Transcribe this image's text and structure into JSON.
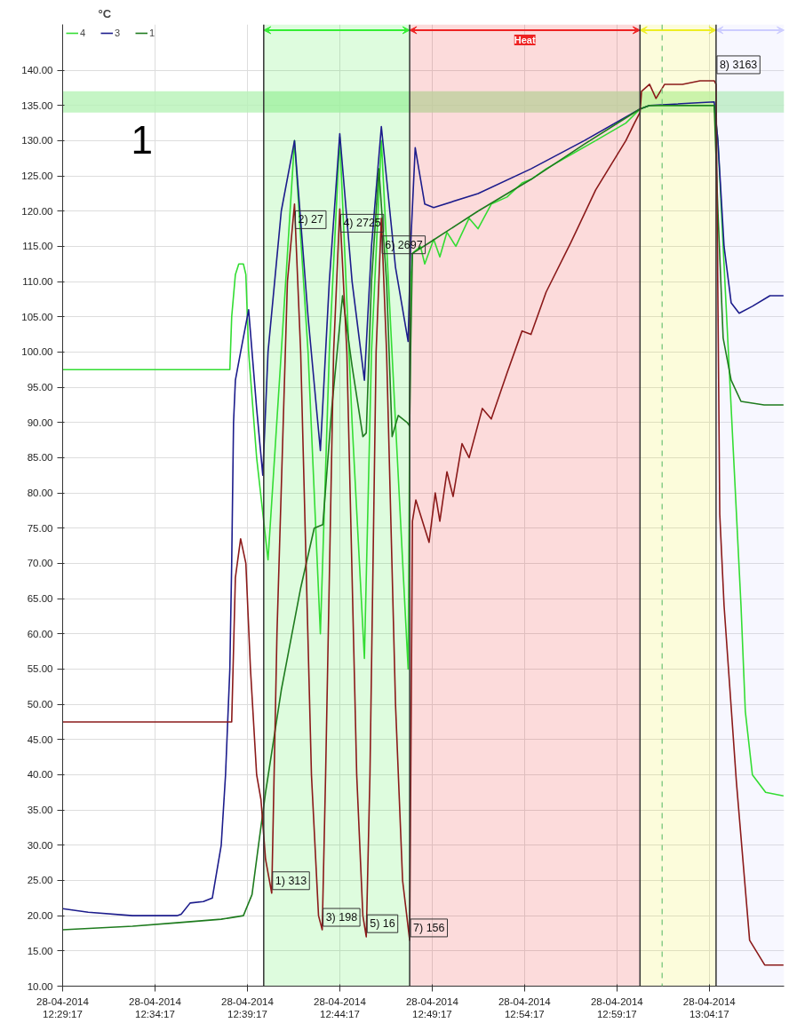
{
  "chart_data": {
    "type": "line",
    "ylabel": "°C",
    "xlim": [
      "2014-04-28T12:29:17",
      "2014-04-28T13:08:20"
    ],
    "ylim": [
      10,
      146.5
    ],
    "xticks": [
      {
        "value": "2014-04-28T12:29:17",
        "label": "28-04-2014\n12:29:17"
      },
      {
        "value": "2014-04-28T12:34:17",
        "label": "28-04-2014\n12:34:17"
      },
      {
        "value": "2014-04-28T12:39:17",
        "label": "28-04-2014\n12:39:17"
      },
      {
        "value": "2014-04-28T12:44:17",
        "label": "28-04-2014\n12:44:17"
      },
      {
        "value": "2014-04-28T12:49:17",
        "label": "28-04-2014\n12:49:17"
      },
      {
        "value": "2014-04-28T12:54:17",
        "label": "28-04-2014\n12:54:17"
      },
      {
        "value": "2014-04-28T12:59:17",
        "label": "28-04-2014\n12:59:17"
      },
      {
        "value": "2014-04-28T13:04:17",
        "label": "28-04-2014\n13:04:17"
      }
    ],
    "yticks": [
      {
        "value": 10,
        "label": "10.00"
      },
      {
        "value": 15,
        "label": "15.00"
      },
      {
        "value": 20,
        "label": "20.00"
      },
      {
        "value": 25,
        "label": "25.00"
      },
      {
        "value": 30,
        "label": "30.00"
      },
      {
        "value": 35,
        "label": "35.00"
      },
      {
        "value": 40,
        "label": "40.00"
      },
      {
        "value": 45,
        "label": "45.00"
      },
      {
        "value": 50,
        "label": "50.00"
      },
      {
        "value": 55,
        "label": "55.00"
      },
      {
        "value": 60,
        "label": "60.00"
      },
      {
        "value": 65,
        "label": "65.00"
      },
      {
        "value": 70,
        "label": "70.00"
      },
      {
        "value": 75,
        "label": "75.00"
      },
      {
        "value": 80,
        "label": "80.00"
      },
      {
        "value": 85,
        "label": "85.00"
      },
      {
        "value": 90,
        "label": "90.00"
      },
      {
        "value": 95,
        "label": "95.00"
      },
      {
        "value": 100,
        "label": "100.00"
      },
      {
        "value": 105,
        "label": "105.00"
      },
      {
        "value": 110,
        "label": "110.00"
      },
      {
        "value": 115,
        "label": "115.00"
      },
      {
        "value": 120,
        "label": "120.00"
      },
      {
        "value": 125,
        "label": "125.00"
      },
      {
        "value": 130,
        "label": "130.00"
      },
      {
        "value": 135,
        "label": "135.00"
      },
      {
        "value": 140,
        "label": "140.00"
      }
    ],
    "grid": true,
    "legend": "top left",
    "marker": "none",
    "line_style": "solid",
    "series": [
      {
        "name": "4",
        "color": "#33dd33",
        "x": [
          "2014-04-28T12:29:17",
          "2014-04-28T12:38:20",
          "2014-04-28T12:38:26",
          "2014-04-28T12:38:38",
          "2014-04-28T12:38:49",
          "2014-04-28T12:39:04",
          "2014-04-28T12:39:12",
          "2014-04-28T12:39:21",
          "2014-04-28T12:39:47",
          "2014-04-28T12:40:24",
          "2014-04-28T12:41:07",
          "2014-04-28T12:41:50",
          "2014-04-28T12:42:34",
          "2014-04-28T12:43:14",
          "2014-04-28T12:43:43",
          "2014-04-28T12:44:17",
          "2014-04-28T12:44:57",
          "2014-04-28T12:45:37",
          "2014-04-28T12:46:00",
          "2014-04-28T12:46:32",
          "2014-04-28T12:47:18",
          "2014-04-28T12:47:59",
          "2014-04-28T12:48:07",
          "2014-04-28T12:48:13",
          "2014-04-28T12:48:39",
          "2014-04-28T12:48:53",
          "2014-04-28T12:49:22",
          "2014-04-28T12:49:42",
          "2014-04-28T12:50:05",
          "2014-04-28T12:50:34",
          "2014-04-28T12:51:17",
          "2014-04-28T12:51:46",
          "2014-04-28T12:52:29",
          "2014-04-28T12:53:20",
          "2014-04-28T12:54:09",
          "2014-04-28T12:54:38",
          "2014-04-28T12:55:27",
          "2014-04-28T12:56:47",
          "2014-04-28T12:58:08",
          "2014-04-28T12:59:46",
          "2014-04-28T13:00:32",
          "2014-04-28T13:01:03",
          "2014-04-28T13:04:33",
          "2014-04-28T13:04:45",
          "2014-04-28T13:05:02",
          "2014-04-28T13:06:00",
          "2014-04-28T13:06:14",
          "2014-04-28T13:06:37",
          "2014-04-28T13:07:20",
          "2014-04-28T13:08:18"
        ],
        "values": [
          97.5,
          97.5,
          105,
          111,
          112.5,
          112.5,
          111,
          100,
          85,
          70.5,
          100,
          130,
          100,
          60,
          100,
          130.5,
          90,
          56.5,
          100,
          130,
          90,
          55,
          110,
          114,
          115,
          112.5,
          116,
          113.5,
          117,
          115,
          119,
          117.5,
          121,
          122,
          124,
          124.5,
          126,
          128,
          130,
          132.5,
          134.5,
          135,
          135,
          130,
          115,
          64,
          49,
          40,
          37.5,
          37
        ]
      },
      {
        "name": "3",
        "color": "#1c1c8c",
        "x": [
          "2014-04-28T12:29:17",
          "2014-04-28T12:30:40",
          "2014-04-28T12:33:04",
          "2014-04-28T12:35:28",
          "2014-04-28T12:35:42",
          "2014-04-28T12:36:11",
          "2014-04-28T12:36:54",
          "2014-04-28T12:37:23",
          "2014-04-28T12:37:52",
          "2014-04-28T12:38:06",
          "2014-04-28T12:38:20",
          "2014-04-28T12:38:26",
          "2014-04-28T12:38:32",
          "2014-04-28T12:38:38",
          "2014-04-28T12:38:55",
          "2014-04-28T12:39:21",
          "2014-04-28T12:39:47",
          "2014-04-28T12:40:07",
          "2014-04-28T12:40:24",
          "2014-04-28T12:41:07",
          "2014-04-28T12:41:50",
          "2014-04-28T12:42:34",
          "2014-04-28T12:43:14",
          "2014-04-28T12:43:43",
          "2014-04-28T12:44:17",
          "2014-04-28T12:44:57",
          "2014-04-28T12:45:37",
          "2014-04-28T12:46:00",
          "2014-04-28T12:46:32",
          "2014-04-28T12:47:18",
          "2014-04-28T12:47:59",
          "2014-04-28T12:48:07",
          "2014-04-28T12:48:22",
          "2014-04-28T12:48:53",
          "2014-04-28T12:49:22",
          "2014-04-28T12:51:46",
          "2014-04-28T12:54:38",
          "2014-04-28T12:57:31",
          "2014-04-28T13:00:32",
          "2014-04-28T13:01:03",
          "2014-04-28T13:04:33",
          "2014-04-28T13:04:45",
          "2014-04-28T13:05:05",
          "2014-04-28T13:05:28",
          "2014-04-28T13:05:54",
          "2014-04-28T13:06:37",
          "2014-04-28T13:07:34",
          "2014-04-28T13:08:18"
        ],
        "values": [
          21,
          20.5,
          20,
          20,
          20.2,
          21.8,
          22,
          22.5,
          30,
          40,
          55,
          70,
          90,
          96,
          100,
          106,
          92,
          82.5,
          100,
          120,
          130,
          105,
          86,
          110,
          131,
          110,
          96,
          115,
          132,
          112,
          101.5,
          115,
          129,
          121,
          120.5,
          122.5,
          126,
          130,
          134.5,
          135,
          135.5,
          130,
          115,
          107,
          105.5,
          106.5,
          108,
          108
        ]
      },
      {
        "name": "1",
        "color": "#1e7b1e",
        "x": [
          "2014-04-28T12:29:17",
          "2014-04-28T12:33:04",
          "2014-04-28T12:35:28",
          "2014-04-28T12:37:52",
          "2014-04-28T12:39:04",
          "2014-04-28T12:39:32",
          "2014-04-28T12:39:53",
          "2014-04-28T12:40:16",
          "2014-04-28T12:41:07",
          "2014-04-28T12:42:10",
          "2014-04-28T12:42:54",
          "2014-04-28T12:43:22",
          "2014-04-28T12:43:51",
          "2014-04-28T12:44:26",
          "2014-04-28T12:44:57",
          "2014-04-28T12:45:32",
          "2014-04-28T12:45:43",
          "2014-04-28T12:46:00",
          "2014-04-28T12:46:24",
          "2014-04-28T12:46:49",
          "2014-04-28T12:47:07",
          "2014-04-28T12:47:27",
          "2014-04-28T12:47:56",
          "2014-04-28T12:48:04",
          "2014-04-28T12:48:07",
          "2014-04-28T12:48:13",
          "2014-04-28T12:49:07",
          "2014-04-28T12:51:46",
          "2014-04-28T12:54:38",
          "2014-04-28T12:57:31",
          "2014-04-28T13:00:32",
          "2014-04-28T13:01:03",
          "2014-04-28T13:04:33",
          "2014-04-28T13:04:45",
          "2014-04-28T13:05:02",
          "2014-04-28T13:05:28",
          "2014-04-28T13:06:00",
          "2014-04-28T13:07:15",
          "2014-04-28T13:08:18"
        ],
        "values": [
          18,
          18.5,
          19,
          19.5,
          20,
          23,
          30,
          37.5,
          52,
          66.5,
          75,
          75.5,
          92,
          108,
          98,
          88,
          88.5,
          110,
          126,
          110,
          88,
          91,
          90,
          89.5,
          100,
          114,
          115.5,
          120,
          124.5,
          129.5,
          134.5,
          135,
          135,
          120,
          102,
          96,
          93,
          92.5,
          92.5
        ]
      },
      {
        "color": "#8b1a1a",
        "x": [
          "2014-04-28T12:29:17",
          "2014-04-28T12:38:26",
          "2014-04-28T12:38:38",
          "2014-04-28T12:38:55",
          "2014-04-28T12:39:12",
          "2014-04-28T12:39:27",
          "2014-04-28T12:39:47",
          "2014-04-28T12:40:01",
          "2014-04-28T12:40:16",
          "2014-04-28T12:40:36",
          "2014-04-28T12:40:53",
          "2014-04-28T12:41:27",
          "2014-04-28T12:41:50",
          "2014-04-28T12:42:10",
          "2014-04-28T12:42:45",
          "2014-04-28T12:43:08",
          "2014-04-28T12:43:20",
          "2014-04-28T12:43:31",
          "2014-04-28T12:43:57",
          "2014-04-28T12:44:17",
          "2014-04-28T12:44:40",
          "2014-04-28T12:45:12",
          "2014-04-28T12:45:32",
          "2014-04-28T12:45:43",
          "2014-04-28T12:45:55",
          "2014-04-28T12:46:15",
          "2014-04-28T12:46:32",
          "2014-04-28T12:46:49",
          "2014-04-28T12:47:18",
          "2014-04-28T12:47:41",
          "2014-04-28T12:48:04",
          "2014-04-28T12:48:13",
          "2014-04-28T12:48:24",
          "2014-04-28T12:49:07",
          "2014-04-28T12:49:27",
          "2014-04-28T12:49:42",
          "2014-04-28T12:50:05",
          "2014-04-28T12:50:25",
          "2014-04-28T12:50:54",
          "2014-04-28T12:51:17",
          "2014-04-28T12:52:00",
          "2014-04-28T12:52:29",
          "2014-04-28T12:53:20",
          "2014-04-28T12:54:09",
          "2014-04-28T12:54:38",
          "2014-04-28T12:55:27",
          "2014-04-28T12:56:47",
          "2014-04-28T12:58:08",
          "2014-04-28T12:59:46",
          "2014-04-28T13:00:14",
          "2014-04-28T13:00:32",
          "2014-04-28T13:00:37",
          "2014-04-28T13:01:03",
          "2014-04-28T13:01:24",
          "2014-04-28T13:01:52",
          "2014-04-28T13:02:50",
          "2014-04-28T13:03:47",
          "2014-04-28T13:04:33",
          "2014-04-28T13:04:39",
          "2014-04-28T13:04:51",
          "2014-04-28T13:05:05",
          "2014-04-28T13:05:45",
          "2014-04-28T13:06:28",
          "2014-04-28T13:07:17",
          "2014-04-28T13:08:18"
        ],
        "values": [
          47.5,
          47.5,
          68,
          73.5,
          70,
          55,
          40,
          36.5,
          28,
          23.2,
          60,
          110,
          121,
          100,
          40,
          20,
          18,
          40,
          100,
          120.3,
          100,
          40,
          20,
          17,
          40,
          100,
          119,
          100,
          50,
          25,
          16.5,
          76,
          79,
          73,
          80,
          76,
          83,
          79.5,
          87,
          85,
          92,
          90.5,
          97,
          103,
          102.5,
          108.5,
          115.5,
          123,
          130,
          132.5,
          134,
          137,
          138,
          136,
          138,
          138,
          138.5,
          138.5,
          138,
          77,
          64,
          39,
          16.5,
          13,
          13
        ]
      }
    ],
    "ref_lines": [
      {
        "axis": "x",
        "value": "2014-04-28T12:40:10",
        "color": "#333333"
      },
      {
        "axis": "x",
        "value": "2014-04-28T12:48:04",
        "color": "#333333"
      },
      {
        "axis": "x",
        "value": "2014-04-28T13:00:32",
        "color": "#333333"
      },
      {
        "axis": "x",
        "value": "2014-04-28T13:04:39",
        "color": "#333333"
      },
      {
        "axis": "x",
        "value": "2014-04-28T13:01:44",
        "color": "#88cc88",
        "line_style": "dashed"
      }
    ],
    "bands": [
      {
        "axis": "y",
        "from": 134,
        "to": 137,
        "color": "#b6f2b6"
      },
      {
        "axis": "x",
        "from": "2014-04-28T12:40:10",
        "to": "2014-04-28T12:48:04",
        "color": "#33ee33"
      },
      {
        "axis": "x",
        "from": "2014-04-28T12:48:04",
        "to": "2014-04-28T13:00:32",
        "color": "#ee2222",
        "label": "Heat"
      },
      {
        "axis": "x",
        "from": "2014-04-28T13:00:32",
        "to": "2014-04-28T13:04:39",
        "color": "#eeee22"
      },
      {
        "axis": "x",
        "from": "2014-04-28T13:04:39",
        "to": "2014-04-28T13:08:20",
        "color": "#ccccff"
      }
    ],
    "annotations": [
      "1",
      {
        "text": "1) 313",
        "x": "2014-04-28T12:40:36",
        "y": 23.2
      },
      {
        "text": "2) 27",
        "x": "2014-04-28T12:41:50",
        "y": 120.8
      },
      {
        "text": "3) 198",
        "x": "2014-04-28T12:43:20",
        "y": 18
      },
      {
        "text": "4) 2725",
        "x": "2014-04-28T12:44:17",
        "y": 120.3
      },
      {
        "text": "5) 16",
        "x": "2014-04-28T12:45:43",
        "y": 17.1
      },
      {
        "text": "6) 2697",
        "x": "2014-04-28T12:46:32",
        "y": 119
      },
      {
        "text": "7) 156",
        "x": "2014-04-28T12:48:04",
        "y": 16.5
      },
      {
        "text": "8) 3163",
        "x": "2014-04-28T13:04:39",
        "y": 138
      }
    ]
  }
}
